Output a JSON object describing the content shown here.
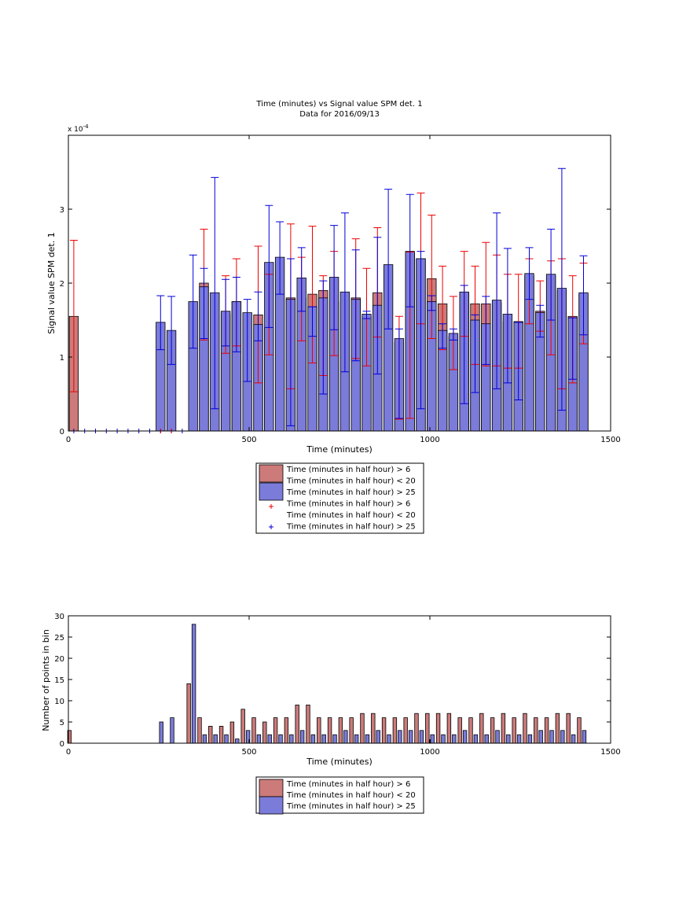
{
  "figure": {
    "colors": {
      "red": "#cc7a7a",
      "blue": "#7b7bd9",
      "red_err": "#ee0000",
      "blue_err": "#0000dd",
      "axis": "#000000"
    }
  },
  "chart_data": [
    {
      "type": "bar",
      "title": "Time (minutes) vs Signal value SPM det. 1",
      "subtitle": "Data for 2016/09/13",
      "xlabel": "Time (minutes)",
      "ylabel": "Signal value SPM det. 1",
      "y_exponent_label": "x 10",
      "y_exponent_power": "-4",
      "xlim": [
        0,
        1500
      ],
      "ylim": [
        0,
        4
      ],
      "xticks": [
        "0",
        "500",
        "1000",
        "1500"
      ],
      "yticks": [
        "0",
        "1",
        "2",
        "3"
      ],
      "legend_position": "below",
      "legend": [
        "Time (minutes in half hour) > 6",
        "Time (minutes in half hour) < 20",
        "Time (minutes in half hour) > 25",
        "Time (minutes in half hour) > 6",
        "Time (minutes in half hour) < 20",
        "Time (minutes in half hour) > 25"
      ],
      "bar_width_minutes": 25,
      "series": [
        {
          "color": "red",
          "x": [
            15,
            375,
            435,
            465,
            525,
            555,
            615,
            645,
            675,
            705,
            735,
            795,
            825,
            855,
            915,
            945,
            975,
            1005,
            1035,
            1065,
            1095,
            1125,
            1155,
            1185,
            1215,
            1245,
            1275,
            1305,
            1335,
            1365,
            1395,
            1425
          ],
          "values": [
            1.55,
            2.0,
            1.58,
            1.75,
            1.57,
            1.4,
            1.8,
            1.8,
            1.85,
            1.9,
            1.75,
            1.8,
            1.55,
            1.87,
            1.2,
            2.4,
            2.33,
            2.06,
            1.72,
            1.28,
            1.87,
            1.72,
            1.72,
            1.73,
            1.48,
            1.48,
            2.1,
            1.62,
            2.1,
            1.9,
            1.55,
            1.85
          ],
          "err_low": [
            0.53,
            1.23,
            1.05,
            1.15,
            0.65,
            1.03,
            0.57,
            1.22,
            0.92,
            0.75,
            1.02,
            0.98,
            0.88,
            1.27,
            0.16,
            0.17,
            1.45,
            1.25,
            1.1,
            0.83,
            1.28,
            0.9,
            0.88,
            0.88,
            0.85,
            0.85,
            1.45,
            1.35,
            1.03,
            0.57,
            0.65,
            1.18
          ],
          "err_high": [
            2.58,
            2.73,
            2.1,
            2.33,
            2.5,
            2.12,
            2.8,
            2.35,
            2.77,
            2.1,
            2.43,
            2.6,
            2.2,
            2.75,
            1.55,
            2.42,
            3.22,
            2.92,
            2.23,
            1.82,
            2.43,
            2.23,
            2.55,
            2.38,
            2.12,
            2.12,
            2.33,
            2.03,
            2.3,
            2.33,
            2.1,
            2.27
          ]
        },
        {
          "color": "blue",
          "x": [
            255,
            285,
            345,
            375,
            405,
            435,
            465,
            495,
            525,
            555,
            585,
            615,
            645,
            675,
            705,
            735,
            765,
            795,
            825,
            855,
            885,
            915,
            945,
            975,
            1005,
            1035,
            1065,
            1095,
            1125,
            1155,
            1185,
            1215,
            1245,
            1275,
            1305,
            1335,
            1365,
            1395,
            1425
          ],
          "values": [
            1.47,
            1.36,
            1.75,
            1.95,
            1.87,
            1.62,
            1.75,
            1.6,
            1.44,
            2.28,
            2.35,
            1.78,
            2.07,
            1.68,
            1.8,
            2.08,
            1.88,
            1.78,
            1.58,
            1.7,
            2.25,
            1.25,
            2.43,
            2.33,
            1.75,
            1.36,
            1.32,
            1.88,
            1.5,
            1.45,
            1.77,
            1.58,
            1.47,
            2.13,
            1.6,
            2.12,
            1.93,
            1.53,
            1.87
          ],
          "err_low": [
            1.1,
            0.9,
            1.12,
            1.25,
            0.3,
            1.15,
            1.07,
            0.67,
            1.22,
            1.4,
            1.85,
            0.07,
            1.62,
            1.28,
            0.5,
            1.37,
            0.8,
            0.95,
            1.52,
            0.77,
            1.38,
            0.17,
            1.68,
            0.3,
            1.63,
            1.12,
            1.23,
            0.37,
            0.52,
            0.9,
            0.57,
            0.65,
            0.42,
            1.78,
            1.27,
            1.5,
            0.28,
            0.7,
            1.3
          ],
          "err_high": [
            1.83,
            1.82,
            2.38,
            2.2,
            3.43,
            2.05,
            2.08,
            1.78,
            1.88,
            3.05,
            2.83,
            2.33,
            2.48,
            1.68,
            2.03,
            2.78,
            2.95,
            2.45,
            1.62,
            2.62,
            3.27,
            1.38,
            3.2,
            2.43,
            1.83,
            1.45,
            1.38,
            1.97,
            1.57,
            1.82,
            2.95,
            2.47,
            1.47,
            2.48,
            1.7,
            2.73,
            3.55,
            1.53,
            2.37
          ]
        },
        {
          "color": "blue",
          "marker": "+",
          "x": [
            15,
            45,
            75,
            105,
            135,
            165,
            195,
            225,
            255,
            285,
            315
          ],
          "values": [
            0,
            0,
            0,
            0,
            0,
            0,
            0,
            0,
            0,
            0,
            0
          ]
        },
        {
          "color": "red",
          "marker": "+",
          "x": [
            255,
            285
          ],
          "values": [
            0,
            0
          ]
        }
      ]
    },
    {
      "type": "bar",
      "xlabel": "Time (minutes)",
      "ylabel": "Number of points in bin",
      "xlim": [
        0,
        1500
      ],
      "ylim": [
        0,
        30
      ],
      "xticks": [
        "0",
        "500",
        "1000",
        "1500"
      ],
      "yticks": [
        "0",
        "5",
        "10",
        "15",
        "20",
        "25",
        "30"
      ],
      "legend_position": "below",
      "legend": [
        "Time (minutes in half hour) > 6",
        "Time (minutes in half hour) < 20",
        "Time (minutes in half hour) > 25"
      ],
      "bar_width_minutes": 10,
      "series": [
        {
          "color": "red",
          "x": [
            3,
            333,
            363,
            393,
            423,
            453,
            483,
            513,
            543,
            573,
            603,
            633,
            663,
            693,
            723,
            753,
            783,
            813,
            843,
            873,
            903,
            933,
            963,
            993,
            1023,
            1053,
            1083,
            1113,
            1143,
            1173,
            1203,
            1233,
            1263,
            1293,
            1323,
            1353,
            1383,
            1413
          ],
          "values": [
            3,
            14,
            6,
            4,
            4,
            5,
            8,
            6,
            5,
            6,
            6,
            9,
            9,
            6,
            6,
            6,
            6,
            7,
            7,
            6,
            6,
            6,
            7,
            7,
            7,
            7,
            6,
            6,
            7,
            6,
            7,
            6,
            7,
            6,
            6,
            7,
            7,
            6
          ]
        },
        {
          "color": "blue",
          "x": [
            257,
            287,
            347,
            377,
            407,
            437,
            467,
            497,
            527,
            557,
            587,
            617,
            647,
            677,
            707,
            737,
            767,
            797,
            827,
            857,
            887,
            917,
            947,
            977,
            1007,
            1037,
            1067,
            1097,
            1127,
            1157,
            1187,
            1217,
            1247,
            1277,
            1307,
            1337,
            1367,
            1397,
            1427
          ],
          "values": [
            5,
            6,
            28,
            2,
            2,
            2,
            1,
            3,
            2,
            2,
            2,
            2,
            3,
            2,
            2,
            2,
            3,
            2,
            2,
            3,
            2,
            3,
            3,
            3,
            2,
            2,
            2,
            3,
            2,
            2,
            3,
            2,
            2,
            2,
            3,
            3,
            3,
            2,
            3
          ]
        }
      ]
    }
  ]
}
